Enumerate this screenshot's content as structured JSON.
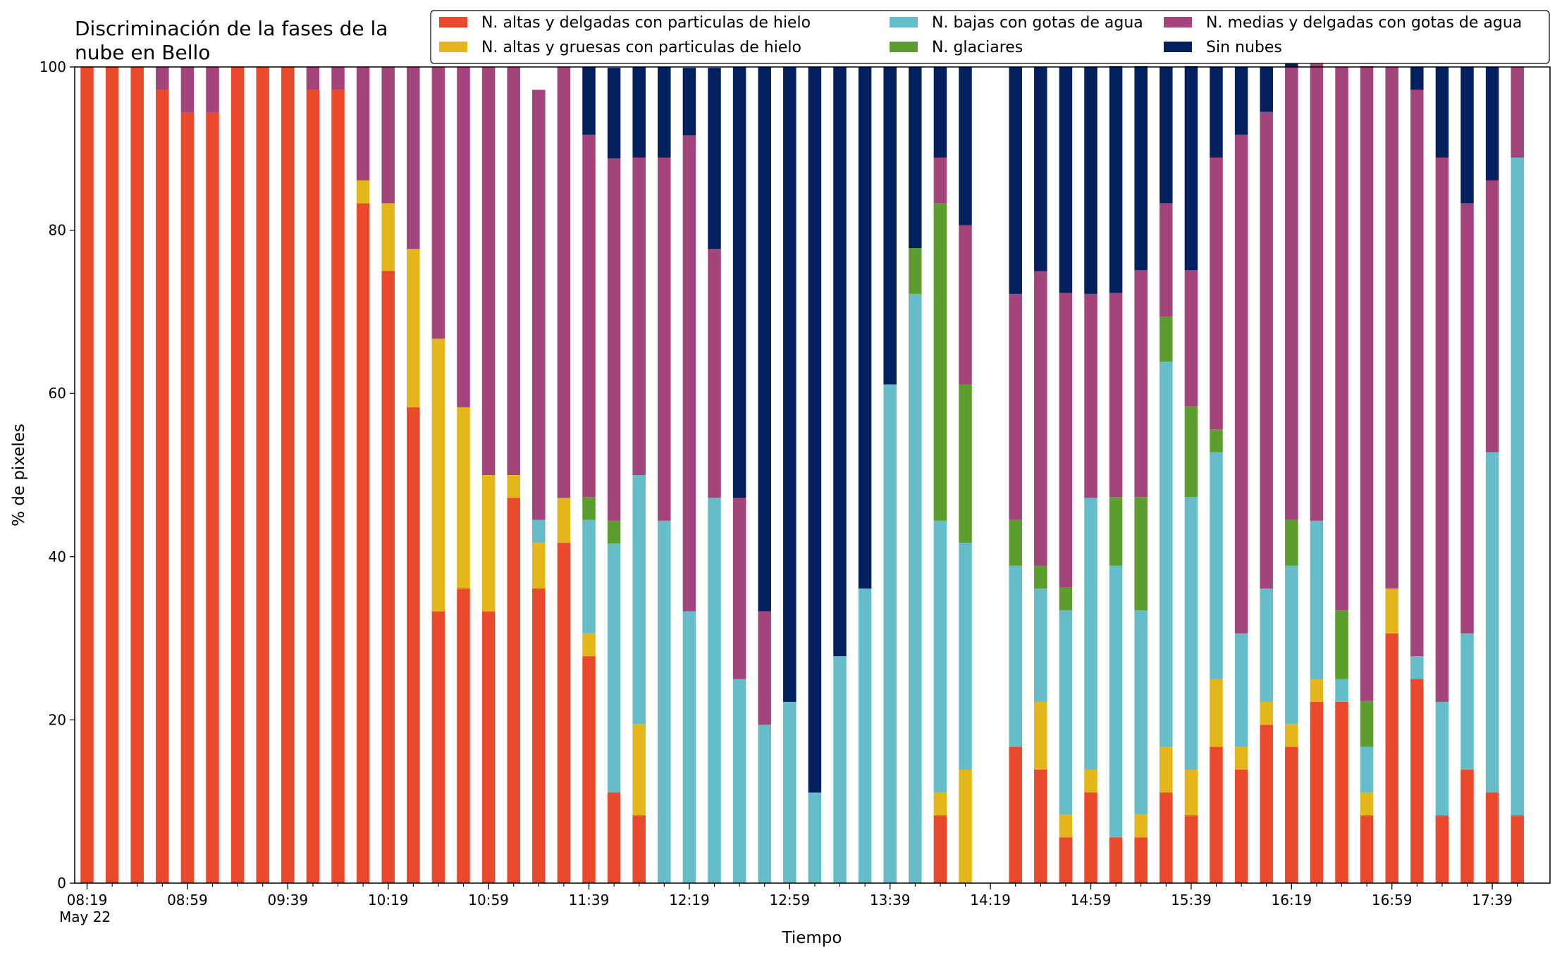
{
  "chart_data": {
    "type": "bar",
    "stacked": true,
    "title_lines": [
      "Discriminación de la fases de la",
      "nube en Bello"
    ],
    "xlabel": "Tiempo",
    "ylabel": "% de pixeles",
    "ylim": [
      0,
      100
    ],
    "yticks": [
      0,
      20,
      40,
      60,
      80,
      100
    ],
    "grid": false,
    "legend_position": "top-right",
    "x_tick_labels": [
      "08:19",
      "08:59",
      "09:39",
      "10:19",
      "10:59",
      "11:39",
      "12:19",
      "12:59",
      "13:39",
      "14:19",
      "14:59",
      "15:39",
      "16:19",
      "16:59",
      "17:39"
    ],
    "x_date_label": "May 22",
    "categories": [
      "08:19",
      "08:29",
      "08:39",
      "08:49",
      "08:59",
      "09:09",
      "09:19",
      "09:29",
      "09:39",
      "09:49",
      "09:59",
      "10:09",
      "10:19",
      "10:29",
      "10:39",
      "10:49",
      "10:59",
      "11:09",
      "11:19",
      "11:29",
      "11:39",
      "11:49",
      "11:59",
      "12:09",
      "12:19",
      "12:29",
      "12:39",
      "12:49",
      "12:59",
      "13:09",
      "13:19",
      "13:29",
      "13:39",
      "13:49",
      "13:59",
      "14:09",
      "14:19",
      "14:29",
      "14:39",
      "14:49",
      "14:59",
      "15:09",
      "15:19",
      "15:29",
      "15:39",
      "15:49",
      "15:59",
      "16:09",
      "16:19",
      "16:29",
      "16:39",
      "16:49",
      "16:59",
      "17:09",
      "17:19",
      "17:29",
      "17:39",
      "17:49"
    ],
    "series": [
      {
        "name": "N. altas y delgadas con particulas de hielo",
        "color": "#ea4a2b",
        "values": [
          100,
          100,
          100,
          97.2,
          94.4,
          94.4,
          100,
          100,
          100,
          97.2,
          97.2,
          83.3,
          75,
          58.3,
          33.3,
          36.1,
          33.3,
          47.2,
          36.1,
          41.7,
          27.8,
          11.1,
          8.3,
          0,
          0,
          0,
          0,
          0,
          0,
          0,
          0,
          0,
          0,
          0,
          8.3,
          0,
          null,
          16.7,
          13.9,
          5.6,
          11.1,
          5.6,
          5.6,
          11.1,
          8.3,
          16.7,
          13.9,
          19.4,
          16.7,
          22.2,
          22.2,
          8.3,
          30.6,
          25,
          8.3,
          13.9,
          11.1,
          8.3
        ]
      },
      {
        "name": "N. altas y gruesas con particulas de hielo",
        "color": "#e5b619",
        "values": [
          0,
          0,
          0,
          0,
          0,
          0,
          0,
          0,
          0,
          0,
          0,
          2.8,
          8.3,
          19.4,
          33.4,
          22.2,
          16.7,
          2.8,
          5.6,
          5.5,
          2.8,
          0,
          11.2,
          0,
          0,
          0,
          0,
          0,
          0,
          0,
          0,
          0,
          0,
          0,
          2.8,
          13.9,
          null,
          0,
          8.3,
          2.8,
          2.8,
          0,
          2.8,
          5.6,
          5.6,
          8.3,
          2.8,
          2.8,
          2.8,
          2.8,
          0,
          2.8,
          5.5,
          0,
          0,
          0,
          0,
          0
        ]
      },
      {
        "name": "N. bajas con gotas de agua",
        "color": "#64bdc8",
        "values": [
          0,
          0,
          0,
          0,
          0,
          0,
          0,
          0,
          0,
          0,
          0,
          0,
          0,
          0,
          0,
          0,
          0,
          0,
          2.8,
          0,
          13.9,
          30.5,
          30.5,
          44.4,
          33.3,
          47.2,
          25,
          19.4,
          22.2,
          11.1,
          27.8,
          36.1,
          61.1,
          72.2,
          33.3,
          27.8,
          null,
          22.2,
          13.9,
          25,
          33.3,
          33.3,
          25,
          47.2,
          33.4,
          27.8,
          13.9,
          13.9,
          19.4,
          19.4,
          2.8,
          5.6,
          0,
          2.8,
          13.9,
          16.7,
          41.7,
          80.6
        ]
      },
      {
        "name": "N. glaciares",
        "color": "#5c9e2e",
        "values": [
          0,
          0,
          0,
          0,
          0,
          0,
          0,
          0,
          0,
          0,
          0,
          0,
          0,
          0,
          0,
          0,
          0,
          0,
          0,
          0,
          2.8,
          2.8,
          0,
          0,
          0,
          0,
          0,
          0,
          0,
          0,
          0,
          0,
          0,
          5.6,
          38.9,
          19.4,
          null,
          5.6,
          2.8,
          2.8,
          0,
          8.4,
          13.9,
          5.5,
          11.1,
          2.8,
          0,
          0,
          5.6,
          0,
          8.4,
          5.6,
          0,
          0,
          0,
          0,
          0,
          0
        ]
      },
      {
        "name": "N. medias y delgadas con gotas de agua",
        "color": "#a3447a",
        "values": [
          0,
          0,
          0,
          2.8,
          5.6,
          5.6,
          0,
          0,
          0,
          2.8,
          2.8,
          13.9,
          16.7,
          22.3,
          33.3,
          41.7,
          50,
          50,
          52.7,
          52.8,
          44.4,
          44.4,
          38.9,
          44.5,
          58.3,
          30.5,
          22.2,
          13.9,
          0,
          0,
          0,
          0,
          0,
          0,
          5.6,
          19.5,
          null,
          27.7,
          36.1,
          36.1,
          25,
          25,
          27.8,
          13.9,
          16.7,
          33.3,
          61.1,
          58.4,
          55.5,
          58.4,
          66.6,
          77.8,
          63.9,
          69.4,
          66.7,
          52.7,
          33.3,
          11.1
        ]
      },
      {
        "name": "Sin nubes",
        "color": "#04205f",
        "values": [
          0,
          0,
          0,
          0,
          0,
          0,
          0,
          0,
          0,
          0,
          0,
          0,
          0,
          0,
          0,
          0,
          0,
          0,
          0,
          0,
          8.3,
          11.1,
          11.1,
          11.1,
          8.3,
          22.2,
          52.8,
          66.7,
          77.8,
          88.9,
          72.2,
          63.9,
          38.9,
          22.2,
          11.1,
          19.4,
          null,
          27.8,
          25,
          27.7,
          27.8,
          27.8,
          25,
          16.7,
          25,
          11.1,
          8.3,
          5.5,
          2.8,
          0,
          0,
          0,
          0,
          2.8,
          11.1,
          16.7,
          13.9,
          0
        ]
      }
    ]
  }
}
